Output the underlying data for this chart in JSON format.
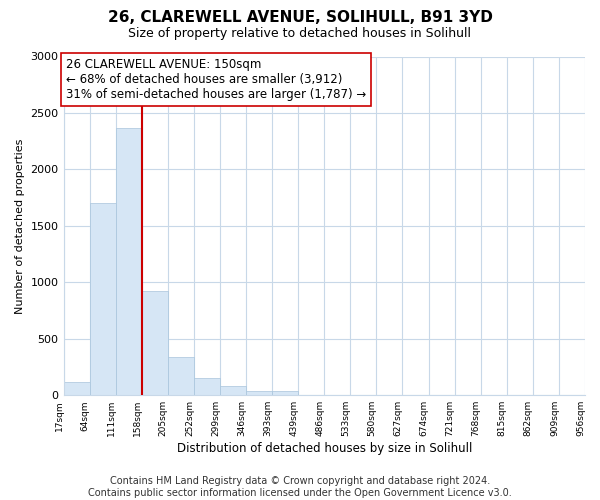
{
  "title": "26, CLAREWELL AVENUE, SOLIHULL, B91 3YD",
  "subtitle": "Size of property relative to detached houses in Solihull",
  "xlabel": "Distribution of detached houses by size in Solihull",
  "ylabel": "Number of detached properties",
  "bar_values": [
    120,
    1700,
    2370,
    920,
    340,
    155,
    80,
    40,
    35,
    0,
    0,
    0,
    0,
    0,
    0,
    0,
    0,
    0,
    0,
    0
  ],
  "bin_labels": [
    "17sqm",
    "64sqm",
    "111sqm",
    "158sqm",
    "205sqm",
    "252sqm",
    "299sqm",
    "346sqm",
    "393sqm",
    "439sqm",
    "486sqm",
    "533sqm",
    "580sqm",
    "627sqm",
    "674sqm",
    "721sqm",
    "768sqm",
    "815sqm",
    "862sqm",
    "909sqm",
    "956sqm"
  ],
  "bar_color": "#d6e6f5",
  "bar_edge_color": "#a8c4dc",
  "vline_x_bin": 3,
  "vline_color": "#cc0000",
  "ann_line1": "26 CLAREWELL AVENUE: 150sqm",
  "ann_line2": "← 68% of detached houses are smaller (3,912)",
  "ann_line3": "31% of semi-detached houses are larger (1,787) →",
  "ann_box_edge_color": "#cc0000",
  "ylim": [
    0,
    3000
  ],
  "yticks": [
    0,
    500,
    1000,
    1500,
    2000,
    2500,
    3000
  ],
  "footer_text": "Contains HM Land Registry data © Crown copyright and database right 2024.\nContains public sector information licensed under the Open Government Licence v3.0.",
  "bg_color": "#ffffff",
  "grid_color": "#c8d8e8",
  "title_fontsize": 11,
  "subtitle_fontsize": 9,
  "annotation_fontsize": 8.5,
  "footer_fontsize": 7,
  "ylabel_fontsize": 8,
  "xlabel_fontsize": 8.5
}
